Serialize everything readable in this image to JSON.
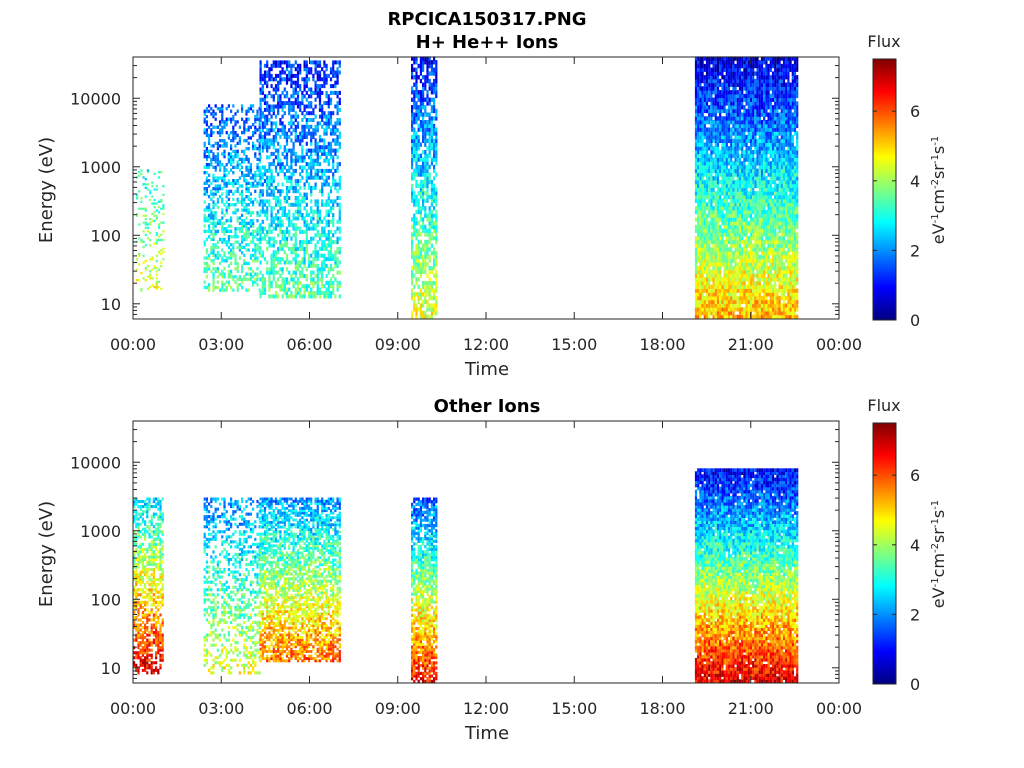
{
  "figure": {
    "title": "RPCICA150317.PNG"
  },
  "colors": {
    "colormap": [
      "#00007f",
      "#0000ff",
      "#007fff",
      "#00ffff",
      "#7fff7f",
      "#ffff00",
      "#ff7f00",
      "#ff0000",
      "#7f0000"
    ],
    "axis": "#262626",
    "background": "#ffffff"
  },
  "chart_data": [
    {
      "type": "heatmap",
      "title": "H+ He++ Ions",
      "xlabel": "Time",
      "ylabel": "Energy (eV)",
      "x_ticks": [
        "00:00",
        "03:00",
        "06:00",
        "09:00",
        "12:00",
        "15:00",
        "18:00",
        "21:00",
        "00:00"
      ],
      "y_ticks": [
        {
          "value": 10,
          "label": "10"
        },
        {
          "value": 100,
          "label": "100"
        },
        {
          "value": 1000,
          "label": "1000"
        },
        {
          "value": 10000,
          "label": "10000"
        }
      ],
      "y_scale": "log",
      "xlim_hours": [
        0,
        24
      ],
      "ylim": [
        6,
        40000
      ],
      "colorbar": {
        "label": "Flux",
        "units": "eV-1cm-2sr-1s-1",
        "ticks": [
          "0",
          "2",
          "4",
          "6"
        ],
        "range": [
          0,
          7.5
        ]
      },
      "data_blocks": [
        {
          "t_start": 0.1,
          "t_end": 1.0,
          "e_low": 15,
          "e_high": 900,
          "flux_low_e": 4.5,
          "flux_high_e": 3.0,
          "density": 0.2
        },
        {
          "t_start": 2.4,
          "t_end": 4.3,
          "e_low": 15,
          "e_high": 8000,
          "flux_low_e": 3.5,
          "flux_high_e": 1.5,
          "density": 0.45
        },
        {
          "t_start": 4.3,
          "t_end": 7.0,
          "e_low": 12,
          "e_high": 35000,
          "flux_low_e": 3.5,
          "flux_high_e": 1.2,
          "density": 0.55
        },
        {
          "t_start": 9.45,
          "t_end": 10.3,
          "e_low": 6,
          "e_high": 40000,
          "flux_low_e": 4.5,
          "flux_high_e": 1.0,
          "density": 0.7
        },
        {
          "t_start": 19.1,
          "t_end": 22.6,
          "e_low": 6,
          "e_high": 40000,
          "flux_low_e": 5.2,
          "flux_high_e": 0.6,
          "density": 0.95
        }
      ]
    },
    {
      "type": "heatmap",
      "title": "Other Ions",
      "xlabel": "Time",
      "ylabel": "Energy (eV)",
      "x_ticks": [
        "00:00",
        "03:00",
        "06:00",
        "09:00",
        "12:00",
        "15:00",
        "18:00",
        "21:00",
        "00:00"
      ],
      "y_ticks": [
        {
          "value": 10,
          "label": "10"
        },
        {
          "value": 100,
          "label": "100"
        },
        {
          "value": 1000,
          "label": "1000"
        },
        {
          "value": 10000,
          "label": "10000"
        }
      ],
      "y_scale": "log",
      "xlim_hours": [
        0,
        24
      ],
      "ylim": [
        6,
        40000
      ],
      "colorbar": {
        "label": "Flux",
        "units": "eV-1cm-2sr-1s-1",
        "ticks": [
          "0",
          "2",
          "4",
          "6"
        ],
        "range": [
          0,
          7.5
        ]
      },
      "data_blocks": [
        {
          "t_start": 0.0,
          "t_end": 1.0,
          "e_low": 8,
          "e_high": 3000,
          "flux_low_e": 6.8,
          "flux_high_e": 2.5,
          "density": 0.6
        },
        {
          "t_start": 2.4,
          "t_end": 4.3,
          "e_low": 8,
          "e_high": 3000,
          "flux_low_e": 4.5,
          "flux_high_e": 2.0,
          "density": 0.4
        },
        {
          "t_start": 4.3,
          "t_end": 7.0,
          "e_low": 12,
          "e_high": 3000,
          "flux_low_e": 5.8,
          "flux_high_e": 2.0,
          "density": 0.7
        },
        {
          "t_start": 9.45,
          "t_end": 10.3,
          "e_low": 6,
          "e_high": 3000,
          "flux_low_e": 6.5,
          "flux_high_e": 1.5,
          "density": 0.8
        },
        {
          "t_start": 19.1,
          "t_end": 22.6,
          "e_low": 6,
          "e_high": 8000,
          "flux_low_e": 6.8,
          "flux_high_e": 0.8,
          "density": 0.95
        }
      ]
    }
  ]
}
